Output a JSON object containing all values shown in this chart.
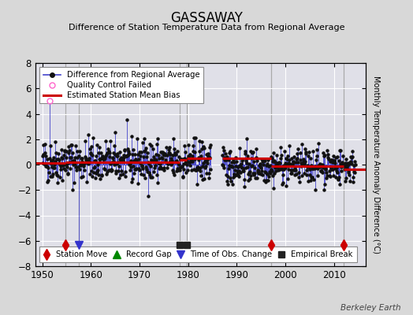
{
  "title": "GASSAWAY",
  "subtitle": "Difference of Station Temperature Data from Regional Average",
  "ylabel": "Monthly Temperature Anomaly Difference (°C)",
  "xlim": [
    1948.5,
    2016.5
  ],
  "ylim": [
    -8,
    8
  ],
  "yticks": [
    -8,
    -6,
    -4,
    -2,
    0,
    2,
    4,
    6,
    8
  ],
  "xticks": [
    1950,
    1960,
    1970,
    1980,
    1990,
    2000,
    2010
  ],
  "bg_color": "#d8d8d8",
  "plot_bg_color": "#e0e0e8",
  "grid_color": "#ffffff",
  "line_color": "#4444cc",
  "dot_color": "#111111",
  "bias_color": "#cc0000",
  "qc_color": "#ff66cc",
  "station_move_color": "#cc0000",
  "tobs_color": "#3333cc",
  "empirical_color": "#222222",
  "record_gap_color": "#008800",
  "seed": 42,
  "data_start": 1950.0,
  "data_end_seg1": 1984.75,
  "data_start_seg2": 1987.0,
  "data_end": 2014.5,
  "station_moves": [
    1954.75,
    1997.0,
    2012.0
  ],
  "tobs_changes": [
    1957.5
  ],
  "empirical_breaks": [
    1978.25,
    1979.75
  ],
  "event_line_color": "#aaaaaa",
  "bias_segments": [
    {
      "x": [
        1948.5,
        1954.75
      ],
      "y": [
        0.1,
        0.1
      ]
    },
    {
      "x": [
        1954.75,
        1978.25
      ],
      "y": [
        0.2,
        0.2
      ]
    },
    {
      "x": [
        1978.25,
        1979.75
      ],
      "y": [
        0.35,
        0.35
      ]
    },
    {
      "x": [
        1979.75,
        1984.75
      ],
      "y": [
        0.5,
        0.5
      ]
    },
    {
      "x": [
        1987.0,
        1997.0
      ],
      "y": [
        0.5,
        0.5
      ]
    },
    {
      "x": [
        1997.0,
        2012.0
      ],
      "y": [
        -0.15,
        -0.15
      ]
    },
    {
      "x": [
        2012.0,
        2016.5
      ],
      "y": [
        -0.35,
        -0.35
      ]
    }
  ],
  "watermark": "Berkeley Earth",
  "event_y": -6.3,
  "spike_year": 1951.5,
  "spike_value": 5.0,
  "qc_year": 1951.5,
  "qc_value": 5.0,
  "long_drop_year": 1957.5,
  "long_drop_value": -7.5
}
